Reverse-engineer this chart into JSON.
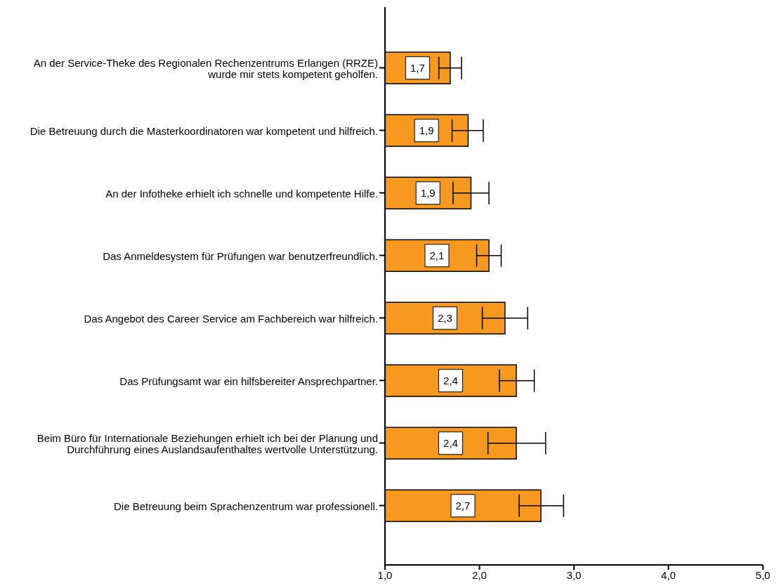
{
  "chart_data": {
    "type": "bar",
    "orientation": "horizontal",
    "categories": [
      "An der Service-Theke des Regionalen Rechenzentrums Erlangen (RRZE) wurde mir stets kompetent geholfen.",
      "Die Betreuung durch die Masterkoordinatoren war kompetent und hilfreich.",
      "An der Infotheke erhielt ich schnelle und kompetente Hilfe.",
      "Das Anmeldesystem für Prüfungen war benutzerfreundlich.",
      "Das Angebot des Career Service am Fachbereich war hilfreich.",
      "Das Prüfungsamt war ein hilfsbereiter Ansprechpartner.",
      "Beim Büro für Internationale Beziehungen erhielt ich bei der Planung und Durchführung eines Auslandsaufenthaltes wertvolle Unterstützung.",
      "Die Betreuung beim Sprachenzentrum war professionell."
    ],
    "values": [
      1.69,
      1.88,
      1.91,
      2.1,
      2.27,
      2.39,
      2.39,
      2.65
    ],
    "errors": [
      [
        1.57,
        1.81
      ],
      [
        1.71,
        2.04
      ],
      [
        1.72,
        2.1
      ],
      [
        1.97,
        2.23
      ],
      [
        2.03,
        2.51
      ],
      [
        2.21,
        2.58
      ],
      [
        2.09,
        2.7
      ],
      [
        2.42,
        2.89
      ]
    ],
    "value_labels": [
      "1,7",
      "1,9",
      "1,9",
      "2,1",
      "2,3",
      "2,4",
      "2,4",
      "2,7"
    ],
    "color": "#f7991f",
    "xlim": [
      1,
      5
    ],
    "xticks": [
      {
        "value": 1,
        "label": "1,0"
      },
      {
        "value": 2,
        "label": "2,0"
      },
      {
        "value": 3,
        "label": "3,0"
      },
      {
        "value": 4,
        "label": "4,0"
      },
      {
        "value": 5,
        "label": "5,0"
      }
    ]
  }
}
